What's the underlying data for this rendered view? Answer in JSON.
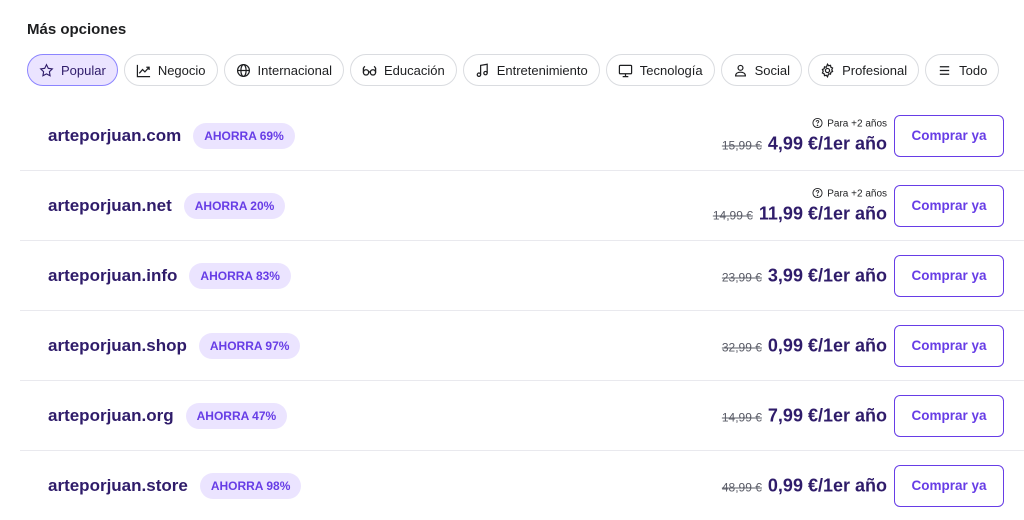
{
  "section_title": "Más opciones",
  "filters": [
    {
      "label": "Popular",
      "icon": "star-icon",
      "active": true
    },
    {
      "label": "Negocio",
      "icon": "chart-line-icon",
      "active": false
    },
    {
      "label": "Internacional",
      "icon": "globe-icon",
      "active": false
    },
    {
      "label": "Educación",
      "icon": "glasses-icon",
      "active": false
    },
    {
      "label": "Entretenimiento",
      "icon": "music-note-icon",
      "active": false
    },
    {
      "label": "Tecnología",
      "icon": "monitor-icon",
      "active": false
    },
    {
      "label": "Social",
      "icon": "person-icon",
      "active": false
    },
    {
      "label": "Profesional",
      "icon": "gear-icon",
      "active": false
    },
    {
      "label": "Todo",
      "icon": "list-icon",
      "active": false
    }
  ],
  "domains": [
    {
      "name": "arteporjuan.com",
      "badge": "AHORRA 69%",
      "note": "Para +2 años",
      "old_price": "15,99 €",
      "price": "4,99 €/1er año",
      "button": "Comprar ya"
    },
    {
      "name": "arteporjuan.net",
      "badge": "AHORRA 20%",
      "note": "Para +2 años",
      "old_price": "14,99 €",
      "price": "11,99 €/1er año",
      "button": "Comprar ya"
    },
    {
      "name": "arteporjuan.info",
      "badge": "AHORRA 83%",
      "note": null,
      "old_price": "23,99 €",
      "price": "3,99 €/1er año",
      "button": "Comprar ya"
    },
    {
      "name": "arteporjuan.shop",
      "badge": "AHORRA 97%",
      "note": null,
      "old_price": "32,99 €",
      "price": "0,99 €/1er año",
      "button": "Comprar ya"
    },
    {
      "name": "arteporjuan.org",
      "badge": "AHORRA 47%",
      "note": null,
      "old_price": "14,99 €",
      "price": "7,99 €/1er año",
      "button": "Comprar ya"
    },
    {
      "name": "arteporjuan.store",
      "badge": "AHORRA 98%",
      "note": null,
      "old_price": "48,99 €",
      "price": "0,99 €/1er año",
      "button": "Comprar ya"
    }
  ],
  "colors": {
    "accent": "#673de6",
    "text_dark": "#2f1c6a",
    "badge_bg": "#ebe4ff"
  }
}
